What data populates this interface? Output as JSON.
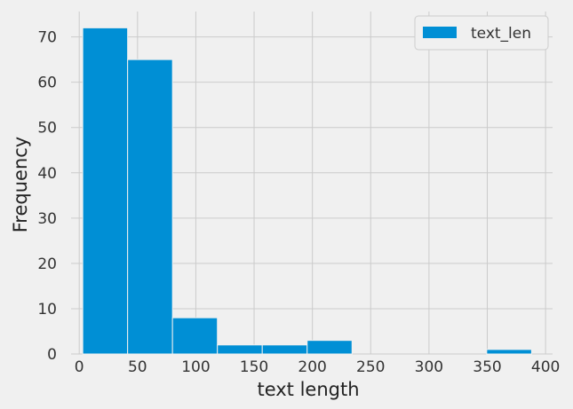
{
  "chart_data": {
    "type": "bar",
    "subtype": "histogram",
    "bins": [
      {
        "start": 3,
        "end": 41.5,
        "count": 72
      },
      {
        "start": 41.5,
        "end": 80,
        "count": 65
      },
      {
        "start": 80,
        "end": 118.5,
        "count": 8
      },
      {
        "start": 118.5,
        "end": 157,
        "count": 2
      },
      {
        "start": 157,
        "end": 195.5,
        "count": 2
      },
      {
        "start": 195.5,
        "end": 234,
        "count": 3
      },
      {
        "start": 234,
        "end": 272.5,
        "count": 0
      },
      {
        "start": 272.5,
        "end": 311,
        "count": 0
      },
      {
        "start": 311,
        "end": 349.5,
        "count": 0
      },
      {
        "start": 349.5,
        "end": 388,
        "count": 1
      }
    ],
    "series": [
      {
        "name": "text_len",
        "color": "#008fd5"
      }
    ],
    "xlabel": "text length",
    "ylabel": "Frequency",
    "xlim": [
      -7,
      406
    ],
    "ylim": [
      0,
      75.6
    ],
    "xticks": [
      0,
      50,
      100,
      150,
      200,
      250,
      300,
      350,
      400
    ],
    "yticks": [
      0,
      10,
      20,
      30,
      40,
      50,
      60,
      70
    ],
    "grid": true,
    "legend_position": "upper right",
    "background_color": "#f0f0f0",
    "grid_color": "#cbcbcb"
  }
}
